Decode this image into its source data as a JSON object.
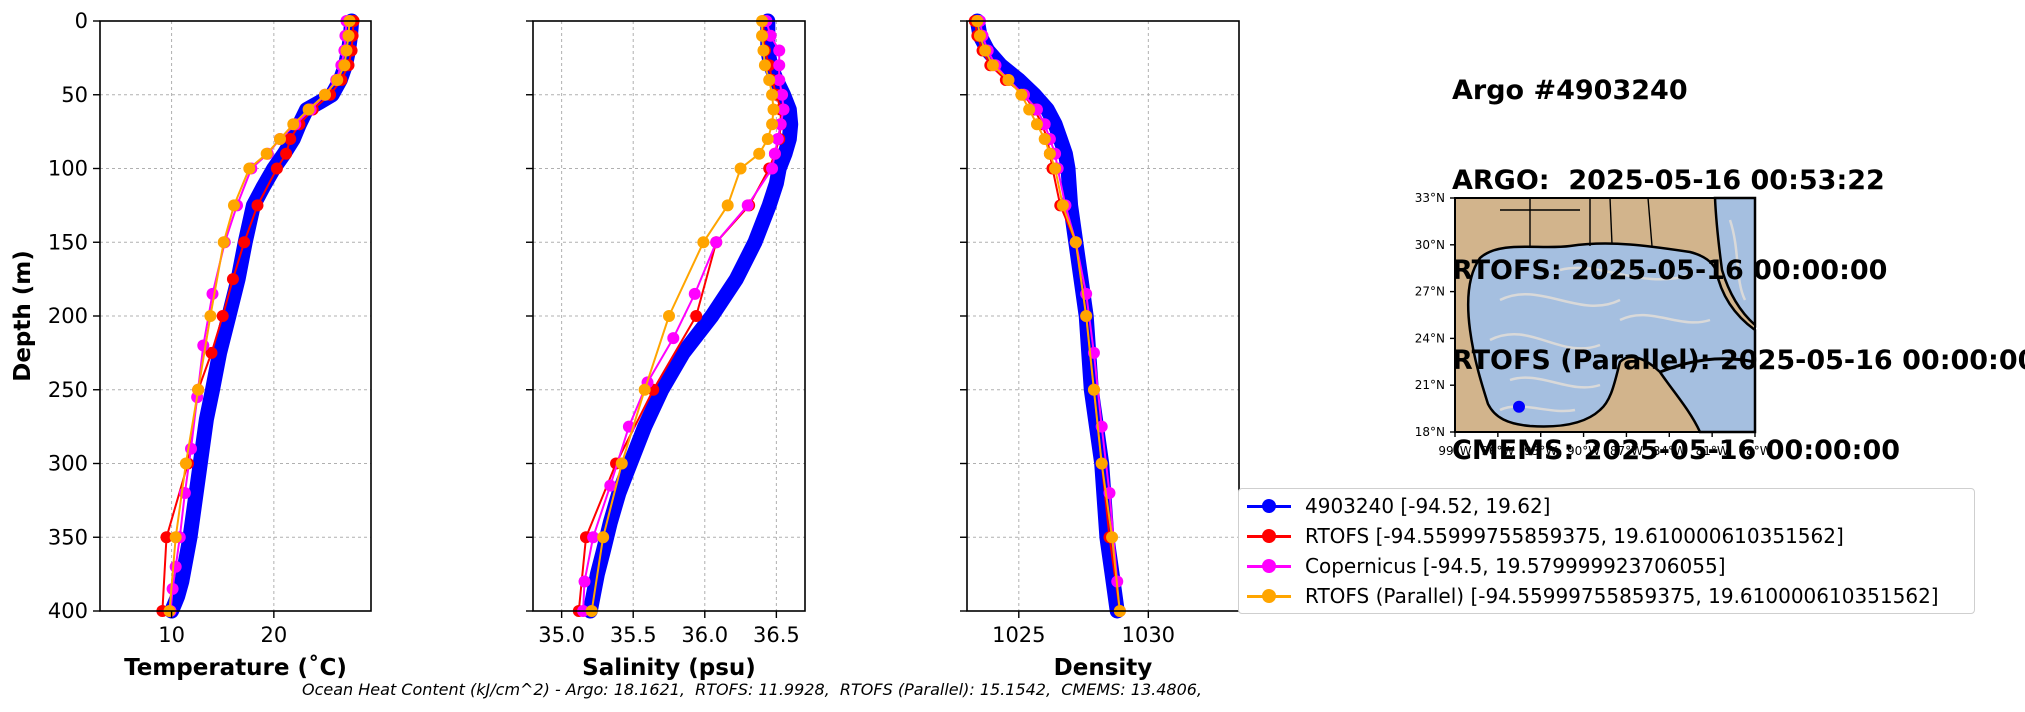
{
  "header": {
    "line1": "Argo #4903240",
    "line2": "ARGO:  2025-05-16 00:53:22",
    "line3": "RTOFS: 2025-05-16 00:00:00",
    "line4": "RTOFS (Parallel): 2025-05-16 00:00:00",
    "line5": "CMEMS: 2025-05-16 00:00:00"
  },
  "footer": "Ocean Heat Content (kJ/cm^2) - Argo: 18.1621,  RTOFS: 11.9928,  RTOFS (Parallel): 15.1542,  CMEMS: 13.4806,",
  "colors": {
    "argo": "#0000ff",
    "rtofs": "#ff0000",
    "copernicus": "#ff00ff",
    "parallel": "#ffa500"
  },
  "legend": [
    {
      "label": "4903240 [-94.52, 19.62]",
      "color": "#0000ff"
    },
    {
      "label": "RTOFS [-94.55999755859375, 19.610000610351562]",
      "color": "#ff0000"
    },
    {
      "label": "Copernicus [-94.5, 19.579999923706055]",
      "color": "#ff00ff"
    },
    {
      "label": "RTOFS (Parallel) [-94.55999755859375, 19.610000610351562]",
      "color": "#ffa500"
    }
  ],
  "map": {
    "lon_ticks": [
      "99°W",
      "96°W",
      "93°W",
      "90°W",
      "87°W",
      "84°W",
      "81°W",
      "78°W"
    ],
    "lat_ticks": [
      "18°N",
      "21°N",
      "24°N",
      "27°N",
      "30°N",
      "33°N"
    ],
    "argo_position": {
      "lon": -94.52,
      "lat": 19.62
    },
    "land_color": "#d2b48c",
    "ocean_color": "#a5bfe0"
  },
  "chart_data": [
    {
      "type": "line",
      "xlabel": "Temperature (˚C)",
      "ylabel": "Depth (m)",
      "xlim": [
        3,
        29.5
      ],
      "ylim": [
        400,
        0
      ],
      "x_ticks": [
        10,
        20
      ],
      "y_ticks": [
        0,
        50,
        100,
        150,
        200,
        250,
        300,
        350,
        400
      ],
      "grid": true,
      "series": [
        {
          "name": "4903240",
          "key": "argo",
          "style": "thick",
          "x": [
            27.6,
            27.5,
            27.3,
            27.0,
            26.5,
            25.7,
            24.5,
            23.2,
            22.5,
            21.9,
            21.0,
            20.0,
            19.0,
            18.0,
            17.2,
            16.5,
            15.6,
            14.7,
            14.0,
            13.4,
            13.0,
            12.6,
            12.2,
            11.8,
            11.4,
            11.0,
            10.6,
            10.3,
            10.0
          ],
          "y": [
            0,
            10,
            20,
            30,
            40,
            50,
            55,
            60,
            70,
            80,
            90,
            100,
            112,
            125,
            150,
            175,
            200,
            225,
            250,
            270,
            290,
            310,
            330,
            350,
            365,
            380,
            390,
            395,
            400
          ]
        },
        {
          "name": "RTOFS",
          "key": "rtofs",
          "x": [
            27.8,
            27.7,
            27.6,
            27.3,
            26.6,
            25.5,
            23.8,
            22.5,
            21.6,
            21.2,
            20.3,
            18.4,
            17.1,
            16.0,
            15.0,
            13.9,
            12.6,
            11.6,
            9.5,
            9.1
          ],
          "y": [
            0,
            10,
            20,
            30,
            40,
            50,
            60,
            70,
            80,
            90,
            100,
            125,
            150,
            175,
            200,
            225,
            250,
            300,
            350,
            400
          ]
        },
        {
          "name": "Copernicus",
          "key": "copernicus",
          "x": [
            27.1,
            27.0,
            26.9,
            26.6,
            26.1,
            25.0,
            23.6,
            22.1,
            20.6,
            19.4,
            17.8,
            16.4,
            15.2,
            14.0,
            13.1,
            12.5,
            11.9,
            11.3,
            10.8,
            10.4,
            10.1,
            9.9
          ],
          "y": [
            0,
            10,
            20,
            30,
            40,
            50,
            60,
            70,
            80,
            90,
            100,
            125,
            150,
            185,
            220,
            255,
            290,
            320,
            350,
            370,
            385,
            400
          ]
        },
        {
          "name": "RTOFS (Parallel)",
          "key": "parallel",
          "x": [
            27.4,
            27.3,
            27.1,
            26.9,
            26.2,
            25.0,
            23.4,
            21.9,
            20.6,
            19.3,
            17.6,
            16.1,
            15.1,
            13.8,
            12.6,
            11.4,
            10.4,
            9.8
          ],
          "y": [
            0,
            10,
            20,
            30,
            40,
            50,
            60,
            70,
            80,
            90,
            100,
            125,
            150,
            200,
            250,
            300,
            350,
            400
          ]
        }
      ]
    },
    {
      "type": "line",
      "xlabel": "Salinity (psu)",
      "xlim": [
        34.8,
        36.7
      ],
      "ylim": [
        400,
        0
      ],
      "x_ticks": [
        35.0,
        35.5,
        36.0,
        36.5
      ],
      "x_tick_labels": [
        "35.0",
        "35.5",
        "36.0",
        "36.5"
      ],
      "grid": true,
      "series": [
        {
          "name": "4903240",
          "key": "argo",
          "style": "thick",
          "x": [
            36.44,
            36.44,
            36.46,
            36.5,
            36.55,
            36.59,
            36.6,
            36.59,
            36.56,
            36.52,
            36.5,
            36.45,
            36.35,
            36.22,
            36.05,
            35.85,
            35.7,
            35.58,
            35.48,
            35.4,
            35.34,
            35.29,
            35.25,
            35.22,
            35.21,
            35.2
          ],
          "y": [
            0,
            20,
            30,
            40,
            50,
            60,
            70,
            80,
            90,
            100,
            110,
            125,
            150,
            175,
            200,
            225,
            250,
            275,
            300,
            320,
            340,
            360,
            375,
            390,
            395,
            400
          ]
        },
        {
          "name": "RTOFS",
          "key": "rtofs",
          "x": [
            36.41,
            36.41,
            36.42,
            36.45,
            36.47,
            36.5,
            36.53,
            36.53,
            36.52,
            36.49,
            36.45,
            36.31,
            36.08,
            35.94,
            35.64,
            35.38,
            35.17,
            35.12
          ],
          "y": [
            0,
            10,
            20,
            30,
            40,
            50,
            60,
            70,
            80,
            90,
            100,
            125,
            150,
            200,
            250,
            300,
            350,
            400
          ]
        },
        {
          "name": "Copernicus",
          "key": "copernicus",
          "x": [
            36.43,
            36.46,
            36.52,
            36.52,
            36.52,
            36.54,
            36.55,
            36.53,
            36.51,
            36.49,
            36.47,
            36.3,
            36.08,
            35.93,
            35.78,
            35.6,
            35.47,
            35.34,
            35.22,
            35.16,
            35.15
          ],
          "y": [
            0,
            10,
            20,
            30,
            40,
            50,
            60,
            70,
            80,
            90,
            100,
            125,
            150,
            185,
            215,
            245,
            275,
            315,
            350,
            380,
            400
          ]
        },
        {
          "name": "RTOFS (Parallel)",
          "key": "parallel",
          "x": [
            36.4,
            36.4,
            36.41,
            36.42,
            36.45,
            36.47,
            36.48,
            36.47,
            36.44,
            36.38,
            36.25,
            36.16,
            35.99,
            35.75,
            35.58,
            35.42,
            35.29,
            35.21
          ],
          "y": [
            0,
            10,
            20,
            30,
            40,
            50,
            60,
            70,
            80,
            90,
            100,
            125,
            150,
            200,
            250,
            300,
            350,
            400
          ]
        }
      ]
    },
    {
      "type": "line",
      "xlabel": "Density",
      "xlim": [
        1023.0,
        1033.5
      ],
      "ylim": [
        400,
        0
      ],
      "x_ticks": [
        1025,
        1030
      ],
      "grid": true,
      "series": [
        {
          "name": "4903240",
          "key": "argo",
          "style": "thick",
          "x": [
            1023.4,
            1023.5,
            1023.8,
            1024.3,
            1025.0,
            1025.6,
            1026.1,
            1026.4,
            1026.6,
            1026.8,
            1026.9,
            1027.0,
            1027.2,
            1027.4,
            1027.6,
            1027.8,
            1028.0,
            1028.2,
            1028.4,
            1028.6,
            1028.8
          ],
          "y": [
            0,
            10,
            20,
            30,
            40,
            50,
            60,
            70,
            80,
            90,
            100,
            125,
            150,
            175,
            200,
            250,
            275,
            300,
            350,
            375,
            400
          ]
        },
        {
          "name": "RTOFS",
          "key": "rtofs",
          "x": [
            1023.3,
            1023.4,
            1023.6,
            1023.9,
            1024.5,
            1025.2,
            1025.6,
            1025.9,
            1026.1,
            1026.2,
            1026.3,
            1026.6,
            1027.2,
            1027.6,
            1027.9,
            1028.2,
            1028.5,
            1028.9
          ],
          "y": [
            0,
            10,
            20,
            30,
            40,
            50,
            60,
            70,
            80,
            90,
            100,
            125,
            150,
            200,
            250,
            300,
            350,
            400
          ]
        },
        {
          "name": "Copernicus",
          "key": "copernicus",
          "x": [
            1023.5,
            1023.6,
            1023.8,
            1024.1,
            1024.6,
            1025.2,
            1025.7,
            1026.0,
            1026.2,
            1026.4,
            1026.5,
            1026.8,
            1027.2,
            1027.6,
            1027.9,
            1028.2,
            1028.5,
            1028.8
          ],
          "y": [
            0,
            10,
            20,
            30,
            40,
            50,
            60,
            70,
            80,
            90,
            100,
            125,
            150,
            185,
            225,
            275,
            320,
            380
          ]
        },
        {
          "name": "RTOFS (Parallel)",
          "key": "parallel",
          "x": [
            1023.4,
            1023.5,
            1023.7,
            1024.0,
            1024.6,
            1025.1,
            1025.4,
            1025.7,
            1026.0,
            1026.2,
            1026.4,
            1026.7,
            1027.2,
            1027.6,
            1027.9,
            1028.2,
            1028.6,
            1028.9
          ],
          "y": [
            0,
            10,
            20,
            30,
            40,
            50,
            60,
            70,
            80,
            90,
            100,
            125,
            150,
            200,
            250,
            300,
            350,
            400
          ]
        }
      ]
    }
  ]
}
